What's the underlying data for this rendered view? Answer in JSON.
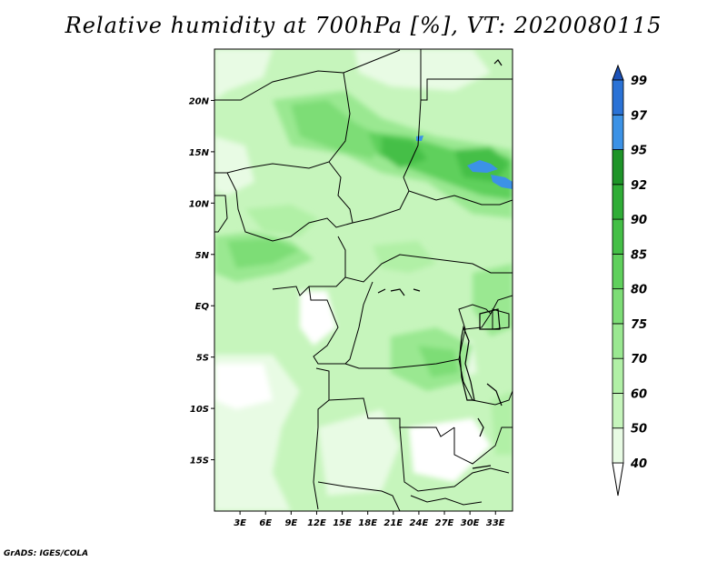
{
  "title": "Relative humidity at 700hPa [%], VT: 2020080115",
  "credit": "GrADS: IGES/COLA",
  "map": {
    "lat_labels": [
      "20N",
      "15N",
      "10N",
      "5N",
      "EQ",
      "5S",
      "10S",
      "15S"
    ],
    "lat_values": [
      20,
      15,
      10,
      5,
      0,
      -5,
      -10,
      -15
    ],
    "lon_labels": [
      "3E",
      "6E",
      "9E",
      "12E",
      "15E",
      "18E",
      "21E",
      "24E",
      "27E",
      "30E",
      "33E"
    ],
    "lon_values": [
      3,
      6,
      9,
      12,
      15,
      18,
      21,
      24,
      27,
      30,
      33
    ],
    "lon_range": [
      0,
      35
    ],
    "lat_range": [
      -20,
      25
    ]
  },
  "colorbar": {
    "levels": [
      "40",
      "50",
      "60",
      "70",
      "75",
      "80",
      "85",
      "90",
      "92",
      "95",
      "97",
      "99"
    ],
    "colors": [
      "#ffffff",
      "#e8fbe4",
      "#c6f5bc",
      "#b1f0a6",
      "#9ae891",
      "#7ddd76",
      "#5fd05c",
      "#44bf46",
      "#2fad36",
      "#1e9428",
      "#3c92e6",
      "#2a72d6",
      "#1c52b8"
    ]
  }
}
